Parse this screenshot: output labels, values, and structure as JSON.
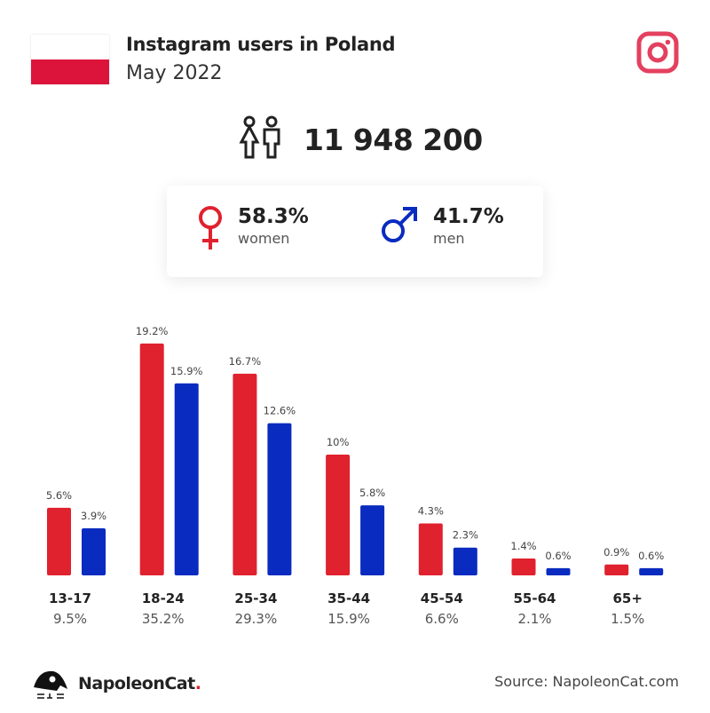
{
  "header": {
    "title": "Instagram users in Poland",
    "subtitle": "May 2022"
  },
  "total": {
    "value": "11 948 200"
  },
  "gender": {
    "women_pct": "58.3%",
    "women_label": "women",
    "men_pct": "41.7%",
    "men_label": "men"
  },
  "colors": {
    "women": "#e0212e",
    "men": "#0a2bbf",
    "instagram": "#e4405f"
  },
  "chart_data": {
    "type": "bar",
    "categories": [
      "13-17",
      "18-24",
      "25-34",
      "35-44",
      "45-54",
      "55-64",
      "65+"
    ],
    "totals": [
      "9.5%",
      "35.2%",
      "29.3%",
      "15.9%",
      "6.6%",
      "2.1%",
      "1.5%"
    ],
    "series": [
      {
        "name": "women",
        "values": [
          5.6,
          19.2,
          16.7,
          10,
          4.3,
          1.4,
          0.9
        ],
        "labels": [
          "5.6%",
          "19.2%",
          "16.7%",
          "10%",
          "4.3%",
          "1.4%",
          "0.9%"
        ]
      },
      {
        "name": "men",
        "values": [
          3.9,
          15.9,
          12.6,
          5.8,
          2.3,
          0.6,
          0.6
        ],
        "labels": [
          "3.9%",
          "15.9%",
          "12.6%",
          "5.8%",
          "2.3%",
          "0.6%",
          "0.6%"
        ]
      }
    ],
    "ylim": [
      0,
      20
    ]
  },
  "footer": {
    "brand": "NapoleonCat",
    "brand_dot": ".",
    "source": "Source: NapoleonCat.com"
  }
}
